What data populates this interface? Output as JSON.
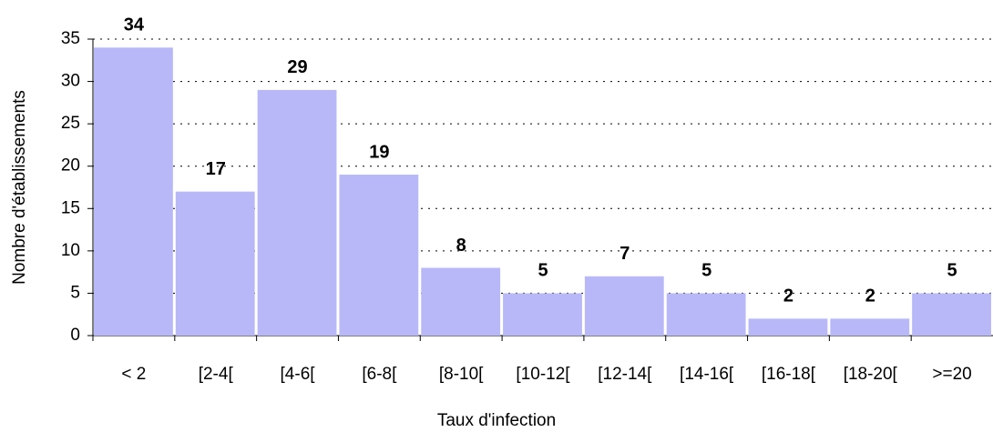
{
  "chart_data": {
    "type": "bar",
    "categories": [
      "< 2",
      "[2-4[",
      "[4-6[",
      "[6-8[",
      "[8-10[",
      "[10-12[",
      "[12-14[",
      "[14-16[",
      "[16-18[",
      "[18-20[",
      ">=20"
    ],
    "values": [
      34,
      17,
      29,
      19,
      8,
      5,
      7,
      5,
      2,
      2,
      5
    ],
    "color": "#b8b8f8",
    "xlabel": "Taux d'infection",
    "ylabel": "Nombre d'établissements",
    "ylim": [
      0,
      35
    ],
    "yticks": [
      0,
      5,
      10,
      15,
      20,
      25,
      30,
      35
    ],
    "grid": true
  }
}
